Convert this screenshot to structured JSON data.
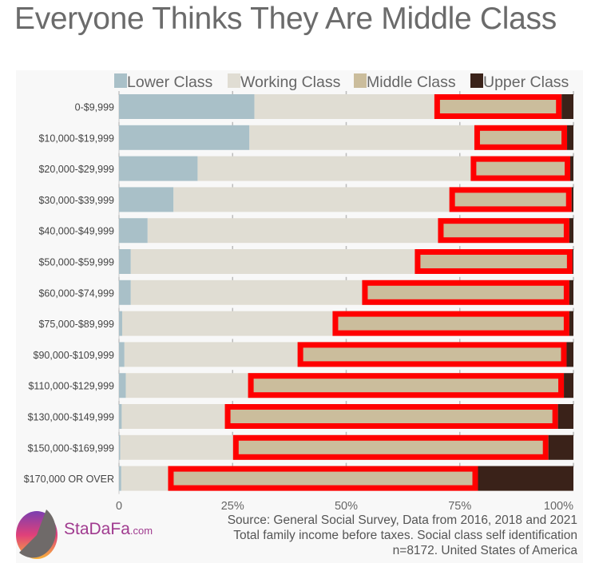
{
  "chart_data": {
    "type": "bar",
    "orientation": "horizontal",
    "stacked": true,
    "title": "Everyone Thinks They Are Middle Class",
    "categories": [
      "0-$9,999",
      "$10,000-$19,999",
      "$20,000-$29,999",
      "$30,000-$39,999",
      "$40,000-$49,999",
      "$50,000-$59,999",
      "$60,000-$74,999",
      "$75,000-$89,999",
      "$90,000-$109,999",
      "$110,000-$129,999",
      "$130,000-$149,999",
      "$150,000-$169,999",
      "$170,000 OR OVER"
    ],
    "series": [
      {
        "name": "Lower Class",
        "color": "#a9c0c8",
        "values": [
          29.8,
          28.7,
          17.3,
          12.0,
          6.3,
          2.6,
          2.6,
          0.7,
          1.2,
          1.5,
          0.6,
          0.3,
          0.5
        ]
      },
      {
        "name": "Working Class",
        "color": "#e0ddd3",
        "values": [
          39.6,
          49.5,
          60.1,
          60.7,
          63.9,
          62.5,
          50.9,
          46.3,
          38.1,
          26.9,
          22.7,
          24.8,
          10.3
        ]
      },
      {
        "name": "Middle Class",
        "color": "#cbbd9c",
        "values": [
          28.0,
          20.4,
          21.9,
          26.9,
          28.9,
          34.7,
          45.6,
          52.1,
          59.2,
          69.5,
          73.3,
          69.4,
          68.2
        ]
      },
      {
        "name": "Upper Class",
        "color": "#3a2219",
        "values": [
          2.6,
          1.4,
          0.7,
          0.4,
          0.9,
          0.2,
          0.9,
          0.9,
          1.5,
          2.1,
          3.4,
          5.5,
          21.0
        ]
      }
    ],
    "highlight_series": "Middle Class",
    "highlight_color": "#ff0000",
    "xlim": [
      0,
      100
    ],
    "xticks": [
      "0",
      "25%",
      "50%",
      "75%",
      "100%"
    ],
    "xtick_values": [
      0,
      25,
      50,
      75,
      100
    ],
    "legend": "top",
    "xlabel": "",
    "ylabel": ""
  },
  "source": {
    "line1": "Source: General Social Survey, Data from 2016, 2018 and 2021",
    "line2": "Total family income before taxes. Social class self identification",
    "line3": "n=8172. United States of America"
  },
  "logo": {
    "name": "StaDaFa",
    "suffix": ".com"
  }
}
